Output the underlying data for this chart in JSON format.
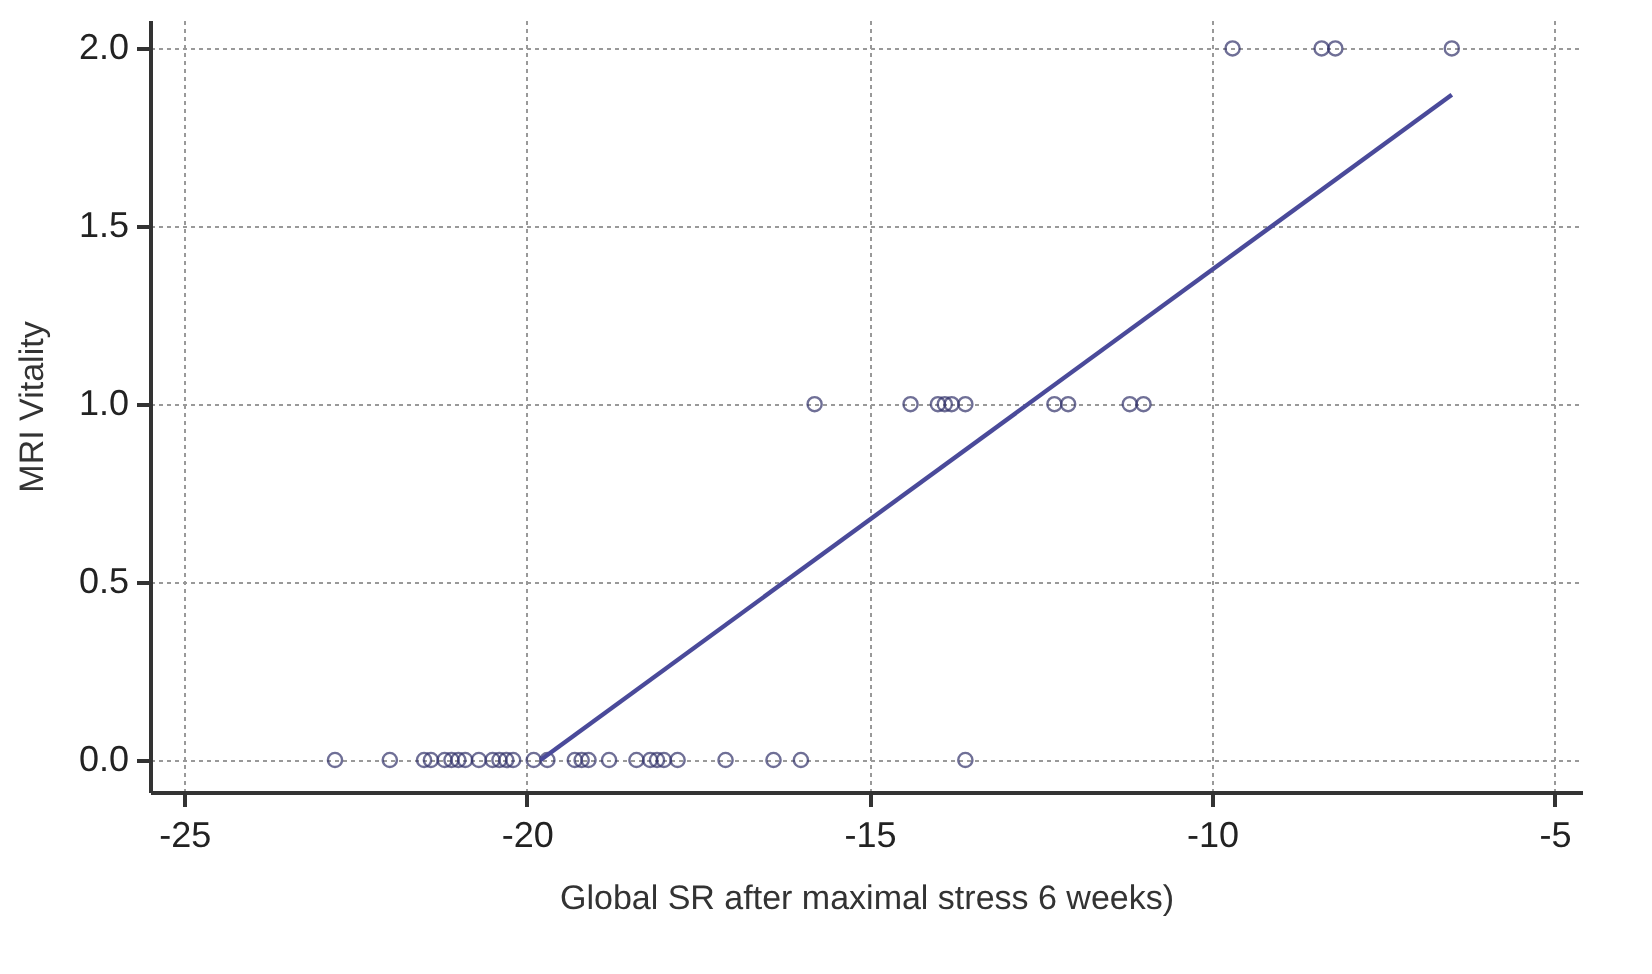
{
  "chart_data": {
    "type": "scatter",
    "xlabel": "Global SR after maximal stress 6 weeks)",
    "ylabel": "MRI Vitality",
    "xlim": [
      -25.5,
      -4.6
    ],
    "ylim": [
      -0.09,
      2.08
    ],
    "xticks": [
      -25,
      -20,
      -15,
      -10,
      -5
    ],
    "yticks": [
      {
        "value": 0,
        "label": "0.0"
      },
      {
        "value": 0.5,
        "label": "0.5"
      },
      {
        "value": 1,
        "label": "1.0"
      },
      {
        "value": 1.5,
        "label": "1.5"
      },
      {
        "value": 2,
        "label": "2.0"
      }
    ],
    "grid": true,
    "series": [
      {
        "color": "#33336b",
        "marker": "circle",
        "x": [
          -22.8,
          -22.0,
          -21.5,
          -21.4,
          -21.2,
          -21.1,
          -21.0,
          -20.9,
          -20.7,
          -20.5,
          -20.4,
          -20.3,
          -20.2,
          -19.9,
          -19.7,
          -19.3,
          -19.2,
          -19.1,
          -18.8,
          -18.4,
          -18.2,
          -18.1,
          -18.0,
          -17.8,
          -17.1,
          -16.4,
          -16.0,
          -13.6,
          -15.8,
          -14.4,
          -14.0,
          -13.9,
          -13.8,
          -13.6,
          -12.3,
          -12.1,
          -11.2,
          -11.0,
          -9.7,
          -8.4,
          -8.2,
          -6.5
        ],
        "values": [
          0,
          0,
          0,
          0,
          0,
          0,
          0,
          0,
          0,
          0,
          0,
          0,
          0,
          0,
          0,
          0,
          0,
          0,
          0,
          0,
          0,
          0,
          0,
          0,
          0,
          0,
          0,
          0,
          1,
          1,
          1,
          1,
          1,
          1,
          1,
          1,
          1,
          1,
          2,
          2,
          2,
          2
        ]
      },
      {
        "type": "line",
        "color": "#4a4a9a",
        "line_style": "solid",
        "x": [
          -19.8,
          -6.5
        ],
        "values": [
          0,
          1.87
        ]
      }
    ]
  }
}
